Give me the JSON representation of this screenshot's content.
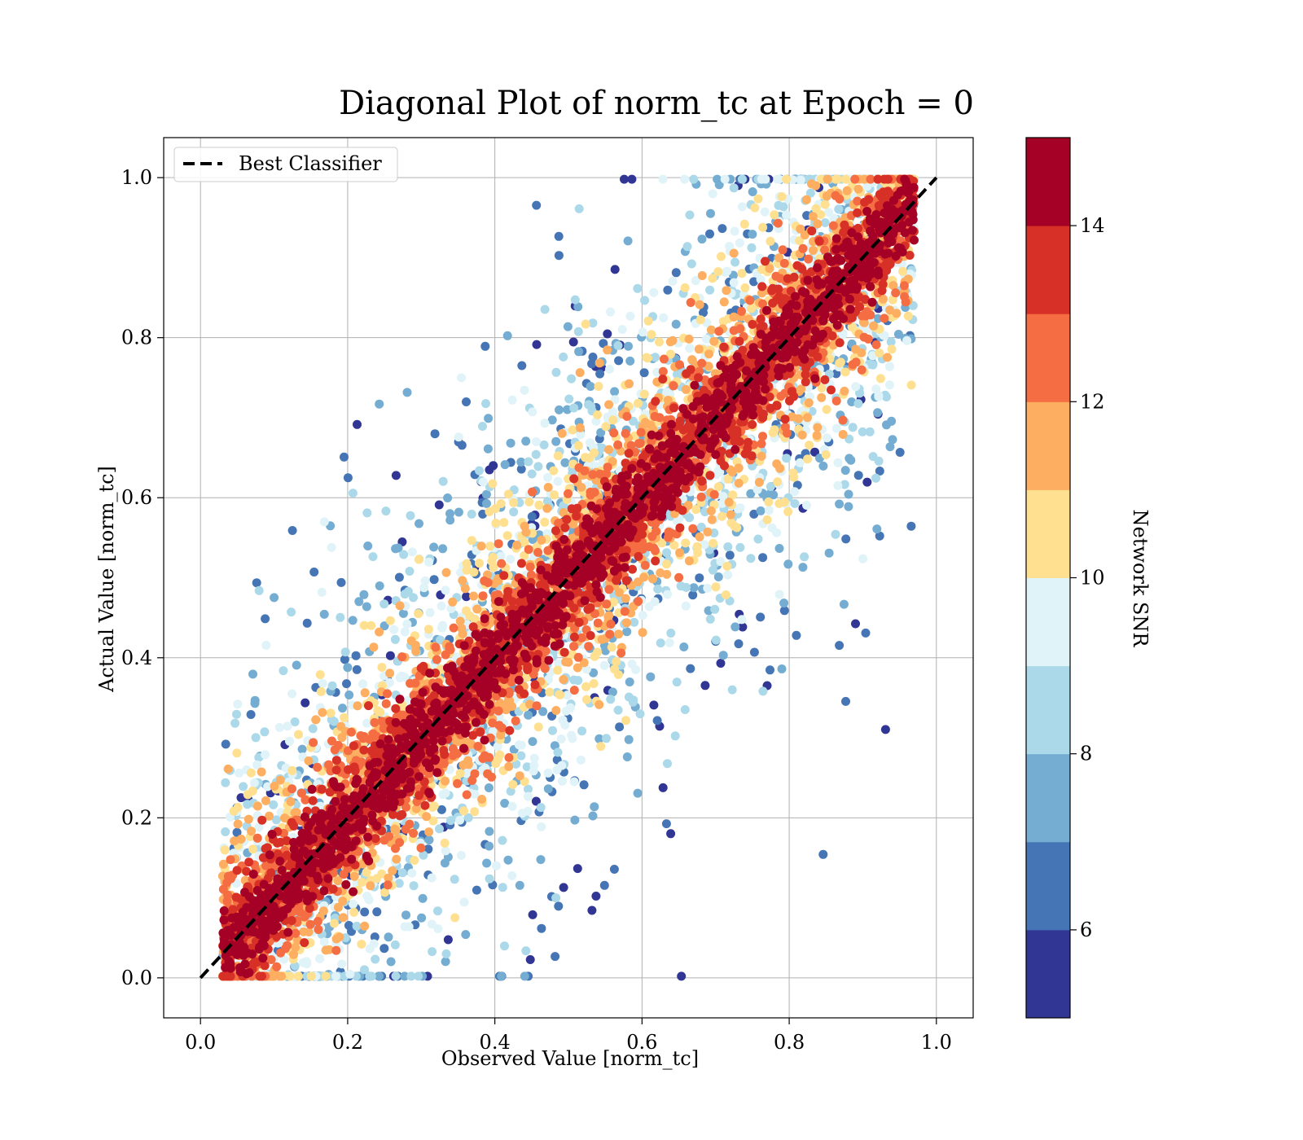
{
  "chart_data": {
    "type": "scatter",
    "title": "Diagonal Plot of norm_tc at Epoch = 0",
    "xlabel": "Observed Value [norm_tc]",
    "ylabel": "Actual Value [norm_tc]",
    "xlim": [
      -0.05,
      1.05
    ],
    "ylim": [
      -0.05,
      1.05
    ],
    "x_ticks": [
      "0.0",
      "0.2",
      "0.4",
      "0.6",
      "0.8",
      "1.0"
    ],
    "y_ticks": [
      "0.0",
      "0.2",
      "0.4",
      "0.6",
      "0.8",
      "1.0"
    ],
    "grid": true,
    "reference_line": {
      "name": "Best Classifier",
      "x": [
        0,
        1
      ],
      "y": [
        0,
        1
      ],
      "style": "dashed",
      "color": "#000000"
    },
    "legend": {
      "placement": "top-left",
      "entries": [
        "Best Classifier"
      ]
    },
    "colorbar": {
      "label": "Network SNR",
      "range": [
        5,
        15
      ],
      "ticks": [
        "6",
        "8",
        "10",
        "12",
        "14"
      ],
      "bands": [
        "#313695",
        "#4575b4",
        "#74add1",
        "#abd9e9",
        "#e0f3f8",
        "#fee090",
        "#fdae61",
        "#f46d43",
        "#d73027",
        "#a50026"
      ]
    },
    "description": "Dense cloud of points concentrated along the diagonal y = x, colored mostly by high SNR (dark red) near the diagonal, with lower-SNR (blue) points spread far from it in the upper-left and lower-right triangles."
  }
}
